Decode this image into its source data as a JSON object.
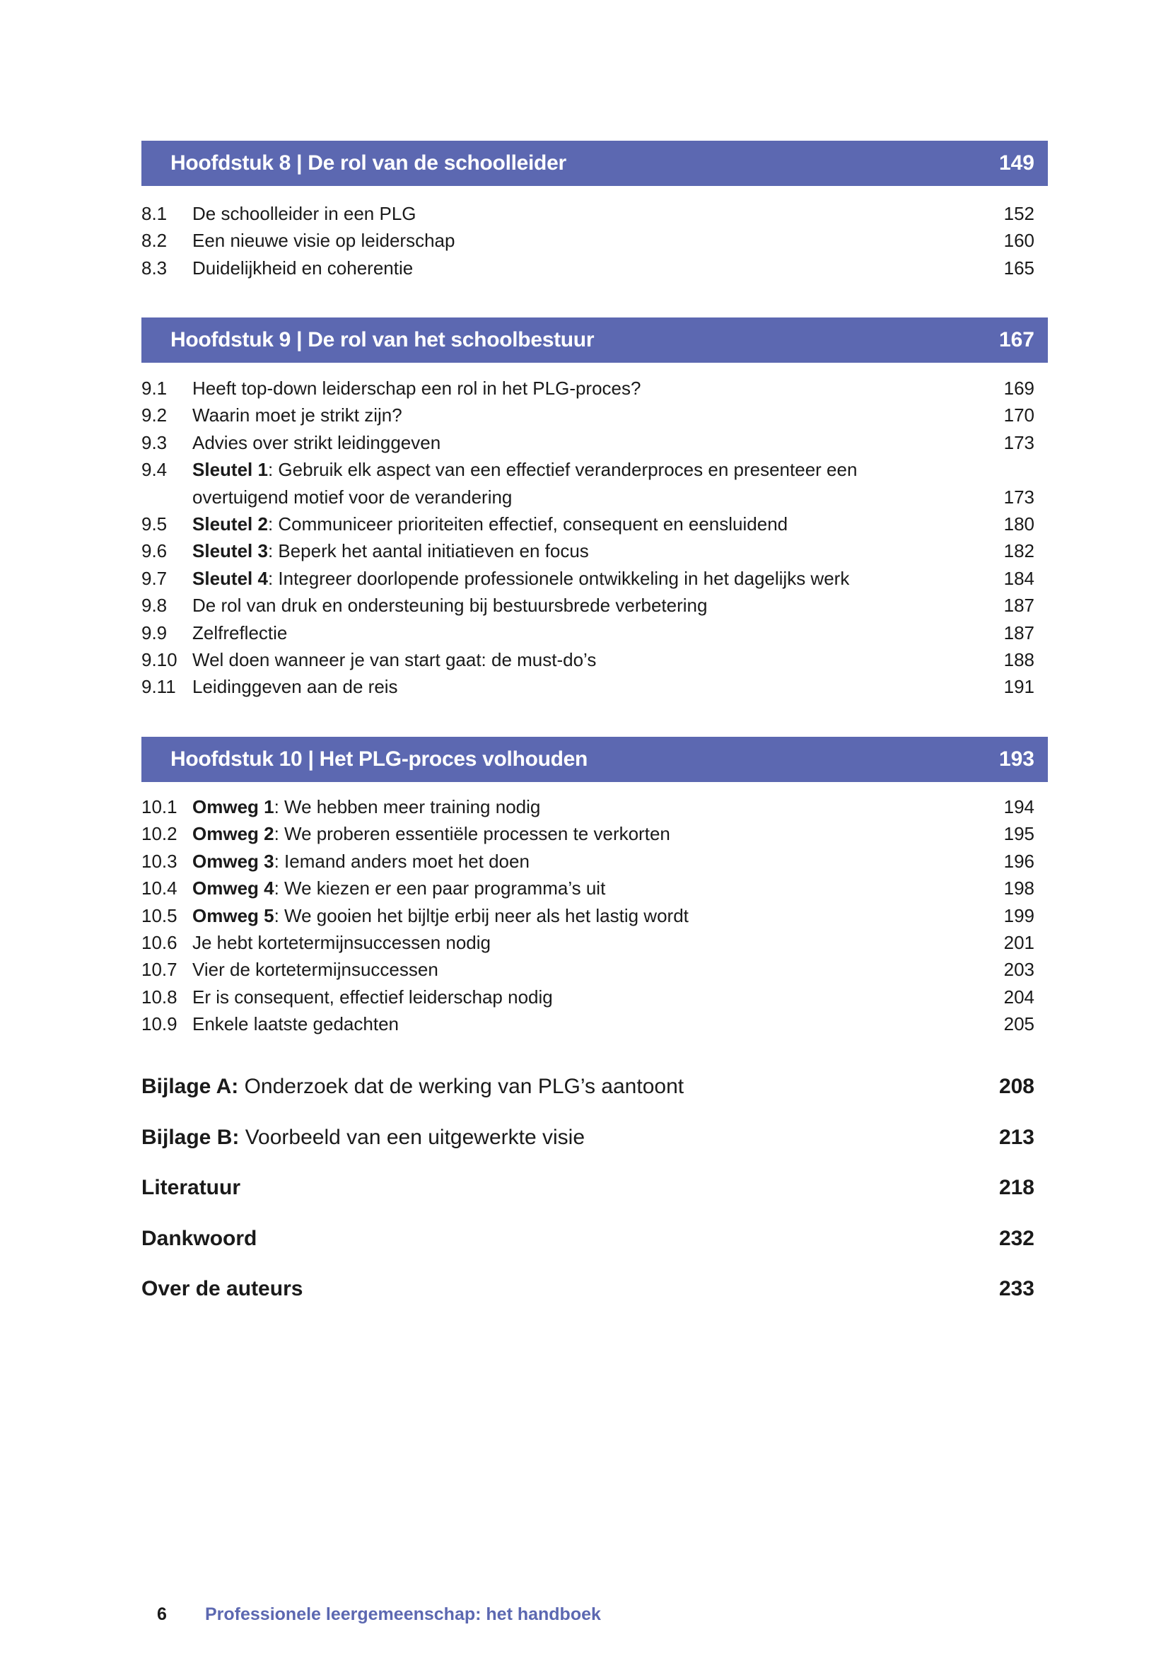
{
  "chapters": [
    {
      "title": "Hoofdstuk 8 | De rol van de schoolleider",
      "page": "149",
      "entries": [
        {
          "num": "8.1",
          "bold": "",
          "text": "De schoolleider in een PLG",
          "page": "152"
        },
        {
          "num": "8.2",
          "bold": "",
          "text": "Een nieuwe visie op leiderschap",
          "page": "160"
        },
        {
          "num": "8.3",
          "bold": "",
          "text": "Duidelijkheid en coherentie",
          "page": "165"
        }
      ]
    },
    {
      "title": "Hoofdstuk 9 | De rol van het schoolbestuur",
      "page": "167",
      "entries": [
        {
          "num": "9.1",
          "bold": "",
          "text": "Heeft top-down leiderschap een rol in het PLG-proces?",
          "page": "169"
        },
        {
          "num": "9.2",
          "bold": "",
          "text": "Waarin moet je strikt zijn?",
          "page": "170"
        },
        {
          "num": "9.3",
          "bold": "",
          "text": "Advies over strikt leidinggeven",
          "page": "173"
        },
        {
          "num": "9.4",
          "bold": "Sleutel 1",
          "text": ": Gebruik elk aspect van een effectief veranderproces en presenteer een",
          "text_cont": "overtuigend motief voor de verandering",
          "page": "173"
        },
        {
          "num": "9.5",
          "bold": "Sleutel 2",
          "text": ": Communiceer prioriteiten effectief, consequent en eensluidend",
          "page": "180"
        },
        {
          "num": "9.6",
          "bold": "Sleutel 3",
          "text": ": Beperk het aantal initiatieven en focus",
          "page": "182"
        },
        {
          "num": "9.7",
          "bold": "Sleutel 4",
          "text": ": Integreer doorlopende professionele ontwikkeling in het dagelijks werk",
          "page": "184"
        },
        {
          "num": "9.8",
          "bold": "",
          "text": "De rol van druk en ondersteuning bij bestuursbrede verbetering",
          "page": "187"
        },
        {
          "num": "9.9",
          "bold": "",
          "text": "Zelfreflectie",
          "page": "187"
        },
        {
          "num": "9.10",
          "bold": "",
          "text": "Wel doen wanneer je van start gaat: de must-do’s",
          "page": "188"
        },
        {
          "num": "9.11",
          "bold": "",
          "text": "Leidinggeven aan de reis",
          "page": "191"
        }
      ]
    },
    {
      "title": "Hoofdstuk 10 | Het PLG-proces volhouden",
      "page": "193",
      "entries": [
        {
          "num": "10.1",
          "bold": "Omweg 1",
          "text": ": We hebben meer training nodig",
          "page": "194"
        },
        {
          "num": "10.2",
          "bold": "Omweg 2",
          "text": ": We proberen essentiële processen te verkorten",
          "page": "195"
        },
        {
          "num": "10.3",
          "bold": "Omweg 3",
          "text": ": Iemand anders moet het doen",
          "page": "196"
        },
        {
          "num": "10.4",
          "bold": "Omweg 4",
          "text": ": We kiezen er een paar programma’s uit",
          "page": "198"
        },
        {
          "num": "10.5",
          "bold": "Omweg 5",
          "text": ": We gooien het bijltje erbij neer als het lastig wordt",
          "page": "199"
        },
        {
          "num": "10.6",
          "bold": "",
          "text": "Je hebt kortetermijnsuccessen nodig",
          "page": "201"
        },
        {
          "num": "10.7",
          "bold": "",
          "text": "Vier de kortetermijnsuccessen",
          "page": "203"
        },
        {
          "num": "10.8",
          "bold": "",
          "text": "Er is consequent, effectief leiderschap nodig",
          "page": "204"
        },
        {
          "num": "10.9",
          "bold": "",
          "text": "Enkele laatste gedachten",
          "page": "205"
        }
      ]
    }
  ],
  "appendices": [
    {
      "bold": "Bijlage A:",
      "text": " Onderzoek dat de werking van PLG’s aantoont",
      "page": "208"
    },
    {
      "bold": "Bijlage B:",
      "text": " Voorbeeld van een uitgewerkte visie",
      "page": "213"
    },
    {
      "bold": "Literatuur",
      "text": "",
      "page": "218"
    },
    {
      "bold": "Dankwoord",
      "text": "",
      "page": "232"
    },
    {
      "bold": "Over de auteurs",
      "text": "",
      "page": "233"
    }
  ],
  "footer": {
    "page_number": "6",
    "book_title": "Professionele leergemeenschap: het handboek"
  },
  "colors": {
    "accent": "#5c68b1",
    "text": "#1a1a1a"
  }
}
